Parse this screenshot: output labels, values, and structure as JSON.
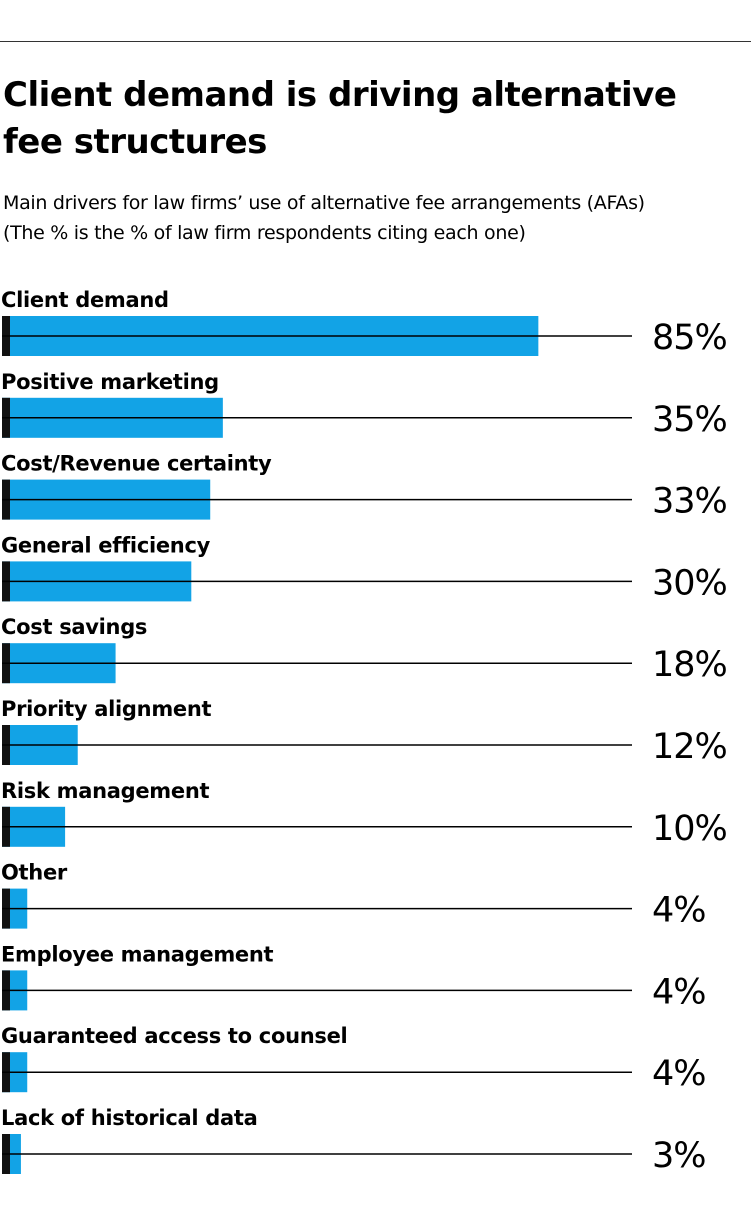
{
  "title": "Client demand is driving alternative fee structures",
  "subtitle_lines": [
    "Main drivers for law firms’ use of alternative fee arrangements (AFAs)",
    "(The % is the % of law firm respondents citing each one)"
  ],
  "colors": {
    "bar": "#12a3e6",
    "marker": "#111111",
    "line": "#000000"
  },
  "chart_data": {
    "type": "bar",
    "orientation": "horizontal",
    "title": "Client demand is driving alternative fee structures",
    "subtitle": "Main drivers for law firms’ use of alternative fee arrangements (AFAs) (The % is the % of law firm respondents citing each one)",
    "categories": [
      "Client demand",
      "Positive marketing",
      "Cost/Revenue certainty",
      "General efficiency",
      "Cost savings",
      "Priority alignment",
      "Risk management",
      "Other",
      "Employee management",
      "Guaranteed access to counsel",
      "Lack of historical data"
    ],
    "values": [
      85,
      35,
      33,
      30,
      18,
      12,
      10,
      4,
      4,
      4,
      3
    ],
    "value_labels": [
      "85%",
      "35%",
      "33%",
      "30%",
      "18%",
      "12%",
      "10%",
      "4%",
      "4%",
      "4%",
      "3%"
    ],
    "unit": "%",
    "xlim": [
      0,
      100
    ],
    "grid": false,
    "legend": "none"
  }
}
